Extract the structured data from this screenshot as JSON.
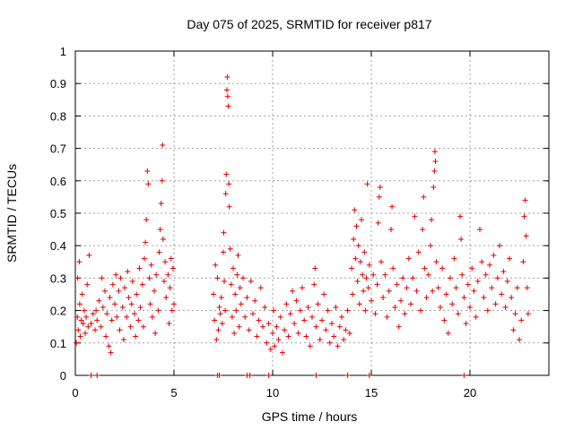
{
  "chart_data": {
    "type": "scatter",
    "title": "Day 075 of 2025, SRMTID for receiver p817",
    "xlabel": "GPS time / hours",
    "ylabel": "SRMTID / TECUs",
    "xlim": [
      0,
      24
    ],
    "ylim": [
      0,
      1
    ],
    "xticks": [
      0,
      5,
      10,
      15,
      20
    ],
    "yticks": [
      0,
      0.1,
      0.2,
      0.3,
      0.4,
      0.5,
      0.6,
      0.7,
      0.8,
      0.9,
      1
    ],
    "xtick_labels": [
      "0",
      "5",
      "10",
      "15",
      "20"
    ],
    "ytick_labels": [
      "0",
      "0.1",
      "0.2",
      "0.3",
      "0.4",
      "0.5",
      "0.6",
      "0.7",
      "0.8",
      "0.9",
      "1"
    ],
    "grid": true,
    "marker": "+",
    "series": [
      {
        "name": "SRMTID",
        "color": "#e00000",
        "points": [
          [
            0.05,
            0.1
          ],
          [
            0.1,
            0.18
          ],
          [
            0.12,
            0.3
          ],
          [
            0.15,
            0.14
          ],
          [
            0.2,
            0.35
          ],
          [
            0.22,
            0.22
          ],
          [
            0.25,
            0.12
          ],
          [
            0.3,
            0.17
          ],
          [
            0.35,
            0.25
          ],
          [
            0.4,
            0.16
          ],
          [
            0.45,
            0.2
          ],
          [
            0.5,
            0.13
          ],
          [
            0.55,
            0.18
          ],
          [
            0.6,
            0.28
          ],
          [
            0.65,
            0.15
          ],
          [
            0.7,
            0.37
          ],
          [
            0.8,
            0.16
          ],
          [
            0.9,
            0.19
          ],
          [
            1.0,
            0.14
          ],
          [
            1.05,
            0.2
          ],
          [
            1.1,
            0.17
          ],
          [
            1.2,
            0.23
          ],
          [
            1.3,
            0.15
          ],
          [
            1.35,
            0.3
          ],
          [
            1.4,
            0.21
          ],
          [
            1.5,
            0.26
          ],
          [
            1.55,
            0.12
          ],
          [
            1.6,
            0.19
          ],
          [
            1.7,
            0.09
          ],
          [
            1.75,
            0.24
          ],
          [
            1.8,
            0.07
          ],
          [
            1.85,
            0.17
          ],
          [
            1.9,
            0.28
          ],
          [
            2.0,
            0.22
          ],
          [
            2.05,
            0.31
          ],
          [
            2.1,
            0.18
          ],
          [
            2.2,
            0.26
          ],
          [
            2.25,
            0.14
          ],
          [
            2.3,
            0.3
          ],
          [
            2.4,
            0.21
          ],
          [
            2.45,
            0.11
          ],
          [
            2.5,
            0.27
          ],
          [
            2.6,
            0.18
          ],
          [
            2.65,
            0.32
          ],
          [
            2.7,
            0.24
          ],
          [
            2.8,
            0.15
          ],
          [
            2.85,
            0.22
          ],
          [
            2.9,
            0.29
          ],
          [
            3.0,
            0.19
          ],
          [
            3.05,
            0.12
          ],
          [
            3.1,
            0.25
          ],
          [
            3.2,
            0.17
          ],
          [
            3.25,
            0.33
          ],
          [
            3.3,
            0.21
          ],
          [
            3.4,
            0.28
          ],
          [
            3.45,
            0.15
          ],
          [
            3.5,
            0.36
          ],
          [
            3.55,
            0.41
          ],
          [
            3.6,
            0.48
          ],
          [
            3.65,
            0.63
          ],
          [
            3.7,
            0.59
          ],
          [
            3.75,
            0.3
          ],
          [
            3.8,
            0.22
          ],
          [
            3.85,
            0.34
          ],
          [
            3.9,
            0.18
          ],
          [
            4.0,
            0.26
          ],
          [
            4.05,
            0.13
          ],
          [
            4.1,
            0.31
          ],
          [
            4.2,
            0.2
          ],
          [
            4.25,
            0.38
          ],
          [
            4.3,
            0.45
          ],
          [
            4.35,
            0.53
          ],
          [
            4.4,
            0.6
          ],
          [
            4.42,
            0.71
          ],
          [
            4.45,
            0.42
          ],
          [
            4.5,
            0.29
          ],
          [
            4.55,
            0.35
          ],
          [
            4.6,
            0.24
          ],
          [
            4.7,
            0.31
          ],
          [
            4.75,
            0.16
          ],
          [
            4.8,
            0.27
          ],
          [
            4.85,
            0.36
          ],
          [
            4.9,
            0.2
          ],
          [
            4.95,
            0.33
          ],
          [
            5.0,
            0.22
          ],
          [
            7.0,
            0.25
          ],
          [
            7.05,
            0.17
          ],
          [
            7.1,
            0.34
          ],
          [
            7.15,
            0.11
          ],
          [
            7.2,
            0.3
          ],
          [
            7.25,
            0.14
          ],
          [
            7.3,
            0.21
          ],
          [
            7.35,
            0.19
          ],
          [
            7.4,
            0.24
          ],
          [
            7.45,
            0.16
          ],
          [
            7.5,
            0.38
          ],
          [
            7.52,
            0.44
          ],
          [
            7.55,
            0.29
          ],
          [
            7.6,
            0.2
          ],
          [
            7.62,
            0.56
          ],
          [
            7.65,
            0.62
          ],
          [
            7.68,
            0.88
          ],
          [
            7.7,
            0.92
          ],
          [
            7.72,
            0.86
          ],
          [
            7.75,
            0.83
          ],
          [
            7.78,
            0.59
          ],
          [
            7.8,
            0.52
          ],
          [
            7.85,
            0.39
          ],
          [
            7.9,
            0.28
          ],
          [
            7.95,
            0.18
          ],
          [
            8.0,
            0.33
          ],
          [
            8.05,
            0.13
          ],
          [
            8.1,
            0.25
          ],
          [
            8.15,
            0.2
          ],
          [
            8.2,
            0.31
          ],
          [
            8.25,
            0.37
          ],
          [
            8.3,
            0.15
          ],
          [
            8.35,
            0.27
          ],
          [
            8.4,
            0.22
          ],
          [
            8.5,
            0.3
          ],
          [
            8.6,
            0.18
          ],
          [
            8.7,
            0.24
          ],
          [
            8.8,
            0.14
          ],
          [
            8.9,
            0.29
          ],
          [
            9.0,
            0.19
          ],
          [
            9.1,
            0.23
          ],
          [
            9.2,
            0.12
          ],
          [
            9.3,
            0.17
          ],
          [
            9.4,
            0.27
          ],
          [
            9.5,
            0.15
          ],
          [
            9.6,
            0.21
          ],
          [
            9.7,
            0.1
          ],
          [
            9.8,
            0.16
          ],
          [
            9.9,
            0.08
          ],
          [
            10.0,
            0.13
          ],
          [
            10.05,
            0.2
          ],
          [
            10.1,
            0.09
          ],
          [
            10.2,
            0.15
          ],
          [
            10.3,
            0.11
          ],
          [
            10.4,
            0.18
          ],
          [
            10.5,
            0.07
          ],
          [
            10.6,
            0.14
          ],
          [
            10.7,
            0.22
          ],
          [
            10.8,
            0.12
          ],
          [
            10.9,
            0.19
          ],
          [
            11.0,
            0.26
          ],
          [
            11.1,
            0.16
          ],
          [
            11.2,
            0.23
          ],
          [
            11.3,
            0.13
          ],
          [
            11.4,
            0.2
          ],
          [
            11.5,
            0.27
          ],
          [
            11.6,
            0.17
          ],
          [
            11.7,
            0.12
          ],
          [
            11.8,
            0.21
          ],
          [
            11.9,
            0.09
          ],
          [
            12.0,
            0.18
          ],
          [
            12.1,
            0.28
          ],
          [
            12.15,
            0.33
          ],
          [
            12.2,
            0.15
          ],
          [
            12.3,
            0.22
          ],
          [
            12.4,
            0.11
          ],
          [
            12.5,
            0.17
          ],
          [
            12.6,
            0.25
          ],
          [
            12.7,
            0.14
          ],
          [
            12.8,
            0.2
          ],
          [
            12.9,
            0.1
          ],
          [
            13.0,
            0.16
          ],
          [
            13.1,
            0.12
          ],
          [
            13.2,
            0.21
          ],
          [
            13.3,
            0.09
          ],
          [
            13.4,
            0.15
          ],
          [
            13.5,
            0.18
          ],
          [
            13.6,
            0.11
          ],
          [
            13.7,
            0.14
          ],
          [
            13.8,
            0.2
          ],
          [
            13.9,
            0.13
          ],
          [
            14.0,
            0.33
          ],
          [
            14.05,
            0.25
          ],
          [
            14.1,
            0.42
          ],
          [
            14.15,
            0.51
          ],
          [
            14.2,
            0.36
          ],
          [
            14.25,
            0.46
          ],
          [
            14.3,
            0.29
          ],
          [
            14.35,
            0.4
          ],
          [
            14.4,
            0.22
          ],
          [
            14.45,
            0.35
          ],
          [
            14.5,
            0.48
          ],
          [
            14.55,
            0.31
          ],
          [
            14.6,
            0.26
          ],
          [
            14.65,
            0.38
          ],
          [
            14.7,
            0.2
          ],
          [
            14.75,
            0.3
          ],
          [
            14.8,
            0.59
          ],
          [
            14.85,
            0.27
          ],
          [
            14.9,
            0.34
          ],
          [
            15.0,
            0.23
          ],
          [
            15.1,
            0.31
          ],
          [
            15.2,
            0.19
          ],
          [
            15.3,
            0.28
          ],
          [
            15.35,
            0.47
          ],
          [
            15.4,
            0.55
          ],
          [
            15.45,
            0.58
          ],
          [
            15.5,
            0.35
          ],
          [
            15.6,
            0.24
          ],
          [
            15.7,
            0.31
          ],
          [
            15.8,
            0.18
          ],
          [
            15.9,
            0.26
          ],
          [
            16.0,
            0.45
          ],
          [
            16.05,
            0.52
          ],
          [
            16.1,
            0.33
          ],
          [
            16.2,
            0.21
          ],
          [
            16.3,
            0.28
          ],
          [
            16.4,
            0.15
          ],
          [
            16.5,
            0.23
          ],
          [
            16.6,
            0.3
          ],
          [
            16.7,
            0.19
          ],
          [
            16.8,
            0.27
          ],
          [
            16.9,
            0.36
          ],
          [
            17.0,
            0.22
          ],
          [
            17.1,
            0.3
          ],
          [
            17.2,
            0.49
          ],
          [
            17.3,
            0.26
          ],
          [
            17.4,
            0.38
          ],
          [
            17.5,
            0.2
          ],
          [
            17.6,
            0.45
          ],
          [
            17.65,
            0.55
          ],
          [
            17.7,
            0.33
          ],
          [
            17.8,
            0.24
          ],
          [
            17.9,
            0.31
          ],
          [
            18.0,
            0.4
          ],
          [
            18.05,
            0.48
          ],
          [
            18.1,
            0.26
          ],
          [
            18.15,
            0.58
          ],
          [
            18.2,
            0.63
          ],
          [
            18.22,
            0.69
          ],
          [
            18.25,
            0.66
          ],
          [
            18.3,
            0.35
          ],
          [
            18.4,
            0.27
          ],
          [
            18.5,
            0.21
          ],
          [
            18.6,
            0.33
          ],
          [
            18.7,
            0.17
          ],
          [
            18.8,
            0.25
          ],
          [
            18.9,
            0.13
          ],
          [
            19.0,
            0.3
          ],
          [
            19.1,
            0.22
          ],
          [
            19.2,
            0.36
          ],
          [
            19.3,
            0.27
          ],
          [
            19.4,
            0.19
          ],
          [
            19.5,
            0.49
          ],
          [
            19.55,
            0.42
          ],
          [
            19.6,
            0.31
          ],
          [
            19.7,
            0.24
          ],
          [
            19.8,
            0.16
          ],
          [
            19.9,
            0.28
          ],
          [
            20.0,
            0.21
          ],
          [
            20.1,
            0.33
          ],
          [
            20.2,
            0.26
          ],
          [
            20.3,
            0.18
          ],
          [
            20.4,
            0.29
          ],
          [
            20.5,
            0.45
          ],
          [
            20.6,
            0.35
          ],
          [
            20.7,
            0.24
          ],
          [
            20.8,
            0.31
          ],
          [
            20.9,
            0.2
          ],
          [
            21.0,
            0.34
          ],
          [
            21.1,
            0.27
          ],
          [
            21.2,
            0.37
          ],
          [
            21.3,
            0.22
          ],
          [
            21.4,
            0.3
          ],
          [
            21.5,
            0.4
          ],
          [
            21.6,
            0.25
          ],
          [
            21.7,
            0.32
          ],
          [
            21.8,
            0.21
          ],
          [
            21.9,
            0.29
          ],
          [
            22.0,
            0.36
          ],
          [
            22.1,
            0.24
          ],
          [
            22.2,
            0.14
          ],
          [
            22.3,
            0.19
          ],
          [
            22.4,
            0.27
          ],
          [
            22.5,
            0.11
          ],
          [
            22.6,
            0.17
          ],
          [
            22.7,
            0.35
          ],
          [
            22.75,
            0.49
          ],
          [
            22.8,
            0.54
          ],
          [
            22.85,
            0.43
          ],
          [
            22.9,
            0.27
          ],
          [
            22.95,
            0.19
          ],
          [
            0.8,
            0
          ],
          [
            1.1,
            0
          ],
          [
            7.2,
            0
          ],
          [
            7.3,
            0
          ],
          [
            8.7,
            0
          ],
          [
            8.85,
            0
          ],
          [
            9.8,
            0
          ],
          [
            12.2,
            0
          ],
          [
            13.8,
            0
          ],
          [
            14.9,
            0
          ],
          [
            19.7,
            0
          ]
        ]
      }
    ]
  }
}
